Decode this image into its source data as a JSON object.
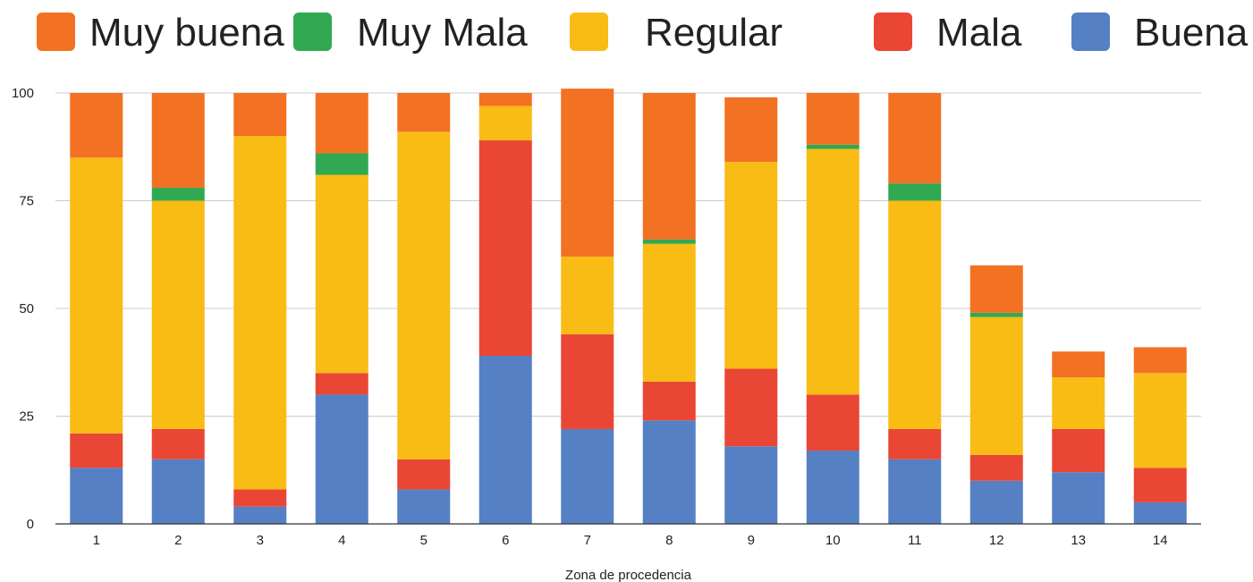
{
  "chart_data": {
    "type": "bar",
    "stacked": true,
    "xlabel": "Zona de procedencia",
    "ylabel": "",
    "ylim": [
      0,
      100
    ],
    "yticks": [
      0,
      25,
      50,
      75,
      100
    ],
    "grid": true,
    "legend_position": "top",
    "categories": [
      "1",
      "2",
      "3",
      "4",
      "5",
      "6",
      "7",
      "8",
      "9",
      "10",
      "11",
      "12",
      "13",
      "14"
    ],
    "series": [
      {
        "name": "Buena",
        "color": "#5580C4",
        "values": [
          13,
          15,
          4,
          30,
          8,
          39,
          22,
          24,
          18,
          17,
          15,
          10,
          12,
          5
        ]
      },
      {
        "name": "Mala",
        "color": "#E94635",
        "values": [
          8,
          7,
          4,
          5,
          7,
          50,
          22,
          9,
          18,
          13,
          7,
          6,
          10,
          8
        ]
      },
      {
        "name": "Regular",
        "color": "#F8BC15",
        "values": [
          64,
          53,
          82,
          46,
          76,
          8,
          18,
          32,
          48,
          57,
          53,
          32,
          12,
          22
        ]
      },
      {
        "name": "Muy Mala",
        "color": "#31A952",
        "values": [
          0,
          3,
          0,
          5,
          0,
          0,
          0,
          1,
          0,
          1,
          4,
          1,
          0,
          0
        ]
      },
      {
        "name": "Muy buena",
        "color": "#F37122",
        "values": [
          15,
          22,
          10,
          14,
          9,
          3,
          39,
          34,
          15,
          12,
          21,
          11,
          6,
          6
        ]
      }
    ],
    "legend_order": [
      "Muy buena",
      "Muy Mala",
      "Regular",
      "Mala",
      "Buena"
    ]
  }
}
